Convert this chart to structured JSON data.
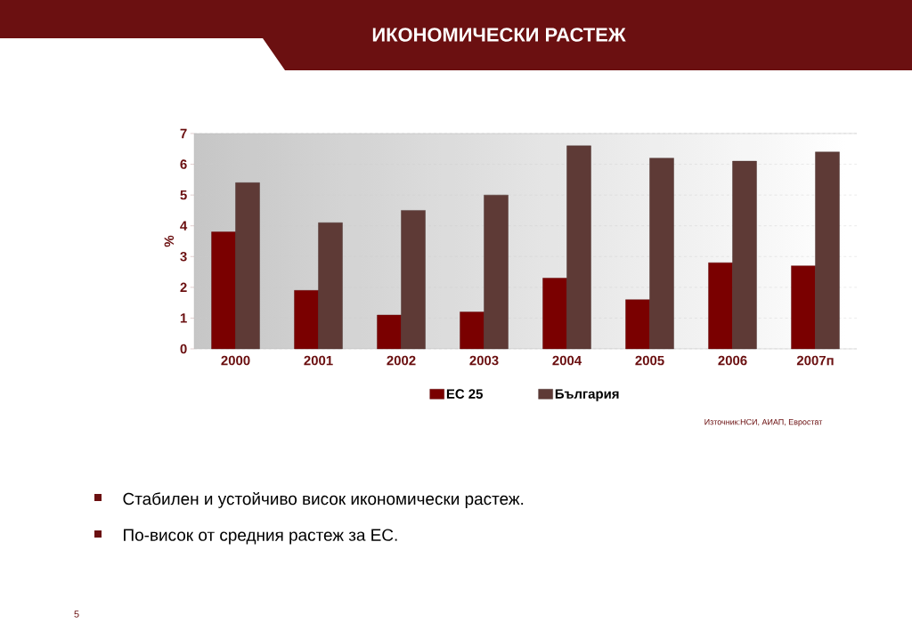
{
  "chart_data": {
    "type": "bar",
    "title": "ИКОНОМИЧЕСКИ РАСТЕЖ",
    "ylabel": "%",
    "categories": [
      "2000",
      "2001",
      "2002",
      "2003",
      "2004",
      "2005",
      "2006",
      "2007п"
    ],
    "series": [
      {
        "name": "ЕС 25",
        "color": "#7a0000",
        "values": [
          3.8,
          1.9,
          1.1,
          1.2,
          2.3,
          1.6,
          2.8,
          2.7
        ]
      },
      {
        "name": "България",
        "color": "#5e3a36",
        "values": [
          5.4,
          4.1,
          4.5,
          5.0,
          6.6,
          6.2,
          6.1,
          6.4
        ]
      }
    ],
    "ylim": [
      0,
      7
    ],
    "yticks": [
      0,
      1,
      2,
      3,
      4,
      5,
      6,
      7
    ],
    "grid": "y",
    "legend": "bottom",
    "annotations": [
      "Източник:НСИ, АИАП, Евростат",
      "Стабилен и устойчиво висок икономически растеж.",
      "По-висок от средния растеж за ЕС.",
      "5"
    ]
  }
}
